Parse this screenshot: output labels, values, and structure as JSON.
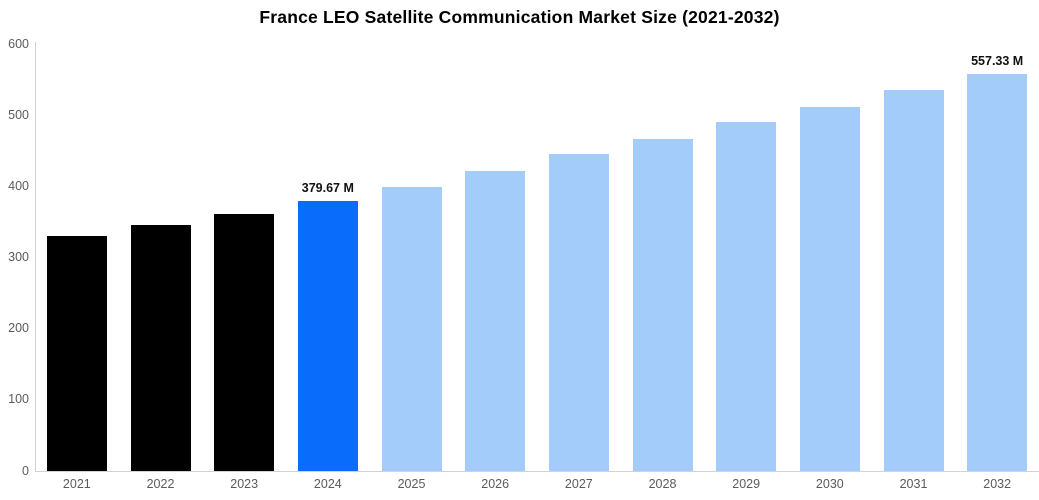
{
  "chart_data": {
    "type": "bar",
    "title": "France LEO Satellite Communication Market Size (2021-2032)",
    "categories": [
      "2021",
      "2022",
      "2023",
      "2024",
      "2025",
      "2026",
      "2027",
      "2028",
      "2029",
      "2030",
      "2031",
      "2032"
    ],
    "values": [
      330,
      346,
      361,
      379.67,
      399,
      421,
      445,
      467,
      490,
      512,
      535,
      557.33
    ],
    "bar_labels": [
      "",
      "",
      "",
      "379.67 M",
      "",
      "",
      "",
      "",
      "",
      "",
      "",
      "557.33 M"
    ],
    "bar_roles": [
      "historical",
      "historical",
      "historical",
      "highlight",
      "forecast",
      "forecast",
      "forecast",
      "forecast",
      "forecast",
      "forecast",
      "forecast",
      "forecast"
    ],
    "unit": "M",
    "xlabel": "",
    "ylabel": "",
    "ylim": [
      0,
      600
    ],
    "yticks": [
      0,
      100,
      200,
      300,
      400,
      500,
      600
    ],
    "grid": false,
    "legend_position": "none",
    "colors": {
      "historical": "#000000",
      "highlight": "#0a6cfb",
      "forecast": "#a3ccfb",
      "axis_text": "#5b5b5b",
      "axis_line": "#d2d2d2",
      "value_label": "#111111",
      "title": "#000000"
    }
  }
}
